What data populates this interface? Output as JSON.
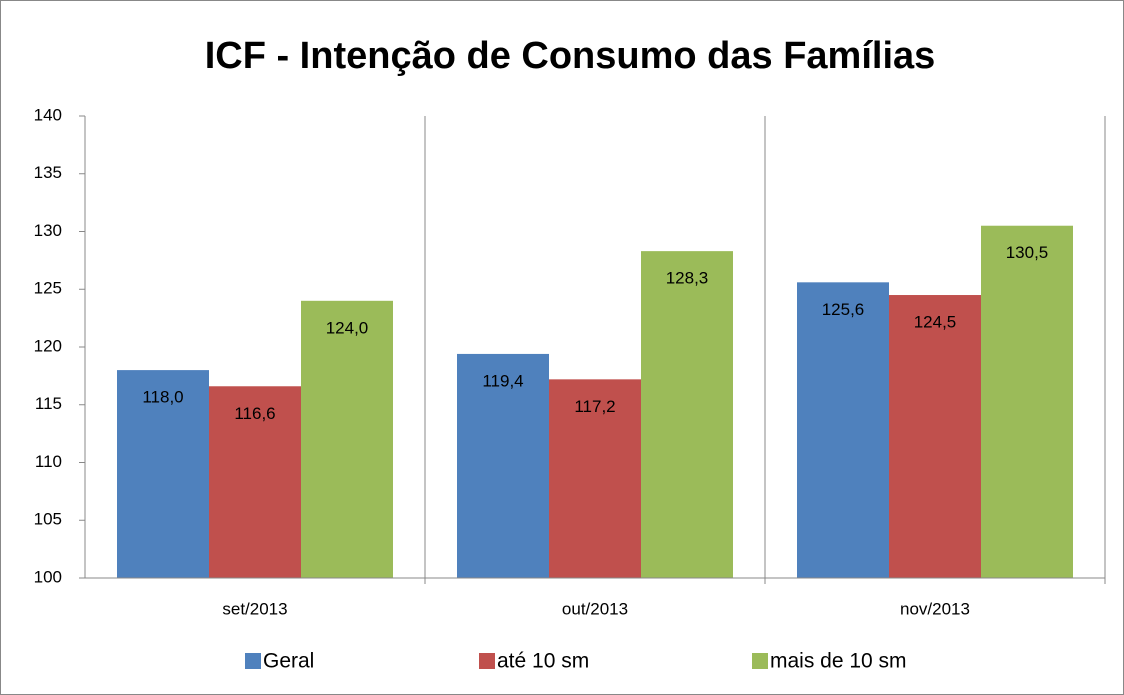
{
  "chart_data": {
    "type": "bar",
    "title": "ICF - Intenção de Consumo das Famílias",
    "categories": [
      "set/2013",
      "out/2013",
      "nov/2013"
    ],
    "series": [
      {
        "name": "Geral",
        "color": "#4f81bd",
        "values": [
          118.0,
          119.4,
          125.6
        ],
        "value_labels": [
          "118,0",
          "119,4",
          "125,6"
        ]
      },
      {
        "name": "até 10 sm",
        "color": "#c0504d",
        "values": [
          116.6,
          117.2,
          124.5
        ],
        "value_labels": [
          "116,6",
          "117,2",
          "124,5"
        ]
      },
      {
        "name": "mais de 10 sm",
        "color": "#9bbb59",
        "values": [
          124.0,
          128.3,
          130.5
        ],
        "value_labels": [
          "124,0",
          "128,3",
          "130,5"
        ]
      }
    ],
    "ylim": [
      100,
      140
    ],
    "yticks": [
      100,
      105,
      110,
      115,
      120,
      125,
      130,
      135,
      140
    ],
    "legend": "bottom"
  }
}
